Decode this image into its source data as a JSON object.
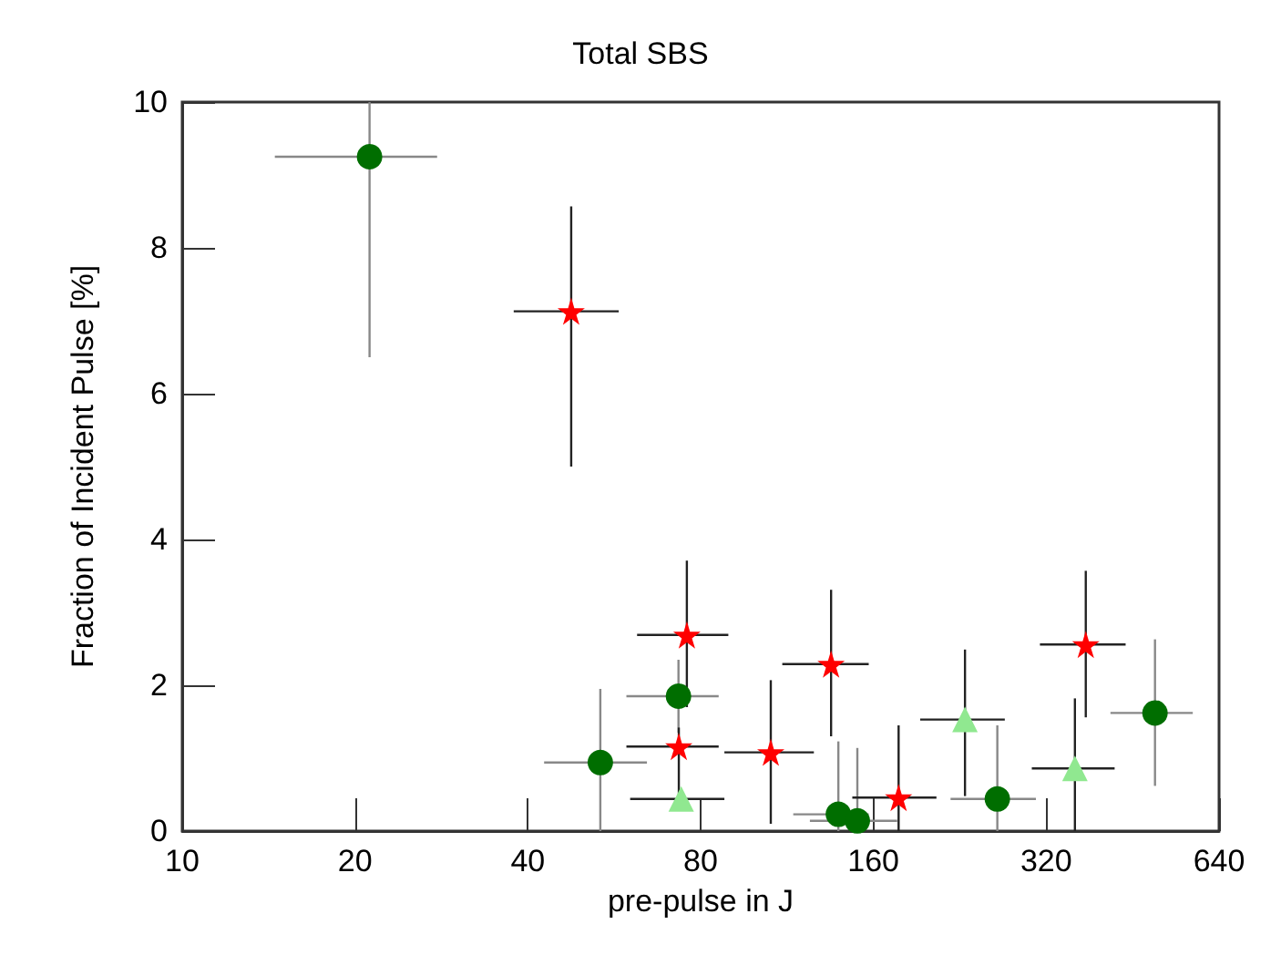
{
  "chart_data": {
    "type": "scatter",
    "title": "Total SBS",
    "xlabel": "pre-pulse in J",
    "ylabel": "Fraction of Incident Pulse [%]",
    "log": "x",
    "grid": false,
    "xlim": [
      10,
      640
    ],
    "xticks": [
      10,
      20,
      40,
      80,
      160,
      320,
      640
    ],
    "ylim": [
      0,
      10
    ],
    "yticks": [
      0,
      2,
      4,
      6,
      8,
      10
    ],
    "series": [
      {
        "color": "#006e00",
        "marker": "circle",
        "x": [
          21.2,
          53.5,
          73.2,
          139,
          150,
          263,
          495
        ],
        "values": [
          9.25,
          0.94,
          1.85,
          0.23,
          0.14,
          0.44,
          1.62
        ],
        "xerrors": [
          [
            14.5,
            27.8
          ],
          [
            42.7,
            64.5
          ],
          [
            59.4,
            86
          ],
          [
            116,
            157
          ],
          [
            124,
            176
          ],
          [
            218,
            307
          ],
          [
            414,
            576
          ]
        ],
        "errors": [
          [
            6.5,
            10
          ],
          [
            0,
            1.95
          ],
          [
            1.35,
            2.35
          ],
          [
            0,
            1.23
          ],
          [
            0,
            1.14
          ],
          [
            0,
            1.45
          ],
          [
            0.62,
            2.63
          ]
        ]
      },
      {
        "color": "#ff0000",
        "marker": "star",
        "x": [
          47.6,
          75.7,
          73.3,
          106,
          135,
          177,
          375
        ],
        "values": [
          7.13,
          2.69,
          1.16,
          1.08,
          2.29,
          0.46,
          2.56
        ],
        "xerrors": [
          [
            37.8,
            57.6
          ],
          [
            62,
            89.4
          ],
          [
            59.4,
            86
          ],
          [
            88,
            126
          ],
          [
            111,
            157
          ],
          [
            147,
            206
          ],
          [
            312,
            440
          ]
        ],
        "errors": [
          [
            5,
            8.57
          ],
          [
            1.7,
            3.71
          ],
          [
            0.5,
            1.42
          ],
          [
            0.1,
            2.07
          ],
          [
            1.3,
            3.31
          ],
          [
            0,
            1.45
          ],
          [
            1.56,
            3.57
          ]
        ]
      },
      {
        "color": "#90e890",
        "marker": "triangle",
        "x": [
          74,
          231,
          359
        ],
        "values": [
          0.44,
          1.53,
          0.86
        ],
        "xerrors": [
          [
            60.3,
            88
          ],
          [
            193,
            271
          ],
          [
            302,
            421
          ]
        ],
        "errors": [
          null,
          [
            0.48,
            2.49
          ],
          [
            0,
            1.82
          ]
        ]
      }
    ]
  }
}
